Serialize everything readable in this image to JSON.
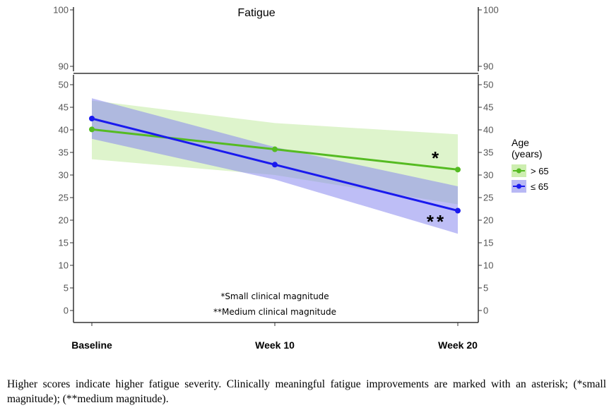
{
  "chart_data": {
    "type": "line",
    "title": "Fatigue",
    "categories": [
      "Baseline",
      "Week 10",
      "Week 20"
    ],
    "ylim_lower": [
      0,
      50
    ],
    "ylim_upper": [
      90,
      100
    ],
    "yticks_lower": [
      0,
      5,
      10,
      15,
      20,
      25,
      30,
      35,
      40,
      45,
      50
    ],
    "yticks_upper": [
      90,
      100
    ],
    "axis_break": true,
    "legend": {
      "title_line1": "Age",
      "title_line2": "(years)",
      "position": "right"
    },
    "series": [
      {
        "name": "> 65",
        "color": "#55bb22",
        "band_color": "#cdeeb0",
        "values": [
          40.1,
          35.7,
          31.2
        ],
        "ci_lower": [
          33.5,
          30.0,
          23.5
        ],
        "ci_upper": [
          46.5,
          41.5,
          39.0
        ]
      },
      {
        "name": "≤ 65",
        "color": "#1a1aee",
        "band_color": "#8888ee",
        "values": [
          42.5,
          32.3,
          22.1
        ],
        "ci_lower": [
          38.0,
          29.0,
          17.0
        ],
        "ci_upper": [
          47.0,
          36.2,
          27.5
        ]
      }
    ],
    "annotations": [
      {
        "text": "*",
        "x_category": "Week 20",
        "y": 34.5
      },
      {
        "text": "**",
        "x_category": "Week 20",
        "y": 20.5
      }
    ],
    "notes": [
      "*Small clinical magnitude",
      "**Medium clinical magnitude"
    ]
  },
  "caption": "Higher scores indicate higher fatigue severity. Clinically meaningful fatigue improvements are marked with an asterisk; (*small magnitude); (**medium magnitude)."
}
